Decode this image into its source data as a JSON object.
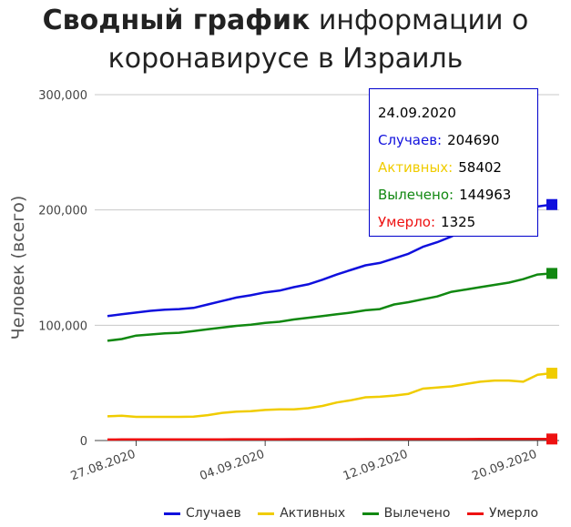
{
  "title": {
    "bold": "Сводный график",
    "rest_line1": " информации о",
    "line2": "коронавирусе в Израиль"
  },
  "tooltip": {
    "date": "24.09.2020",
    "cases_label": "Случаев:",
    "cases_value": "204690",
    "active_label": "Активных:",
    "active_value": "58402",
    "recovered_label": "Вылечено:",
    "recovered_value": "144963",
    "deaths_label": "Умерло:",
    "deaths_value": "1325"
  },
  "colors": {
    "cases": "#1010dd",
    "active": "#f0cc00",
    "recovered": "#118811",
    "deaths": "#ee1111"
  },
  "chart_data": {
    "type": "line",
    "ylabel": "Человек (всего)",
    "xlabel": "",
    "ylim": [
      0,
      300000
    ],
    "yticks": [
      0,
      100000,
      200000,
      300000
    ],
    "ytick_labels": [
      "0",
      "100,000",
      "200,000",
      "300,000"
    ],
    "x_start": "24.08.2020",
    "x": [
      "24.08",
      "25.08",
      "26.08",
      "27.08",
      "28.08",
      "29.08",
      "30.08",
      "31.08",
      "01.09",
      "02.09",
      "03.09",
      "04.09",
      "05.09",
      "06.09",
      "07.09",
      "08.09",
      "09.09",
      "10.09",
      "11.09",
      "12.09",
      "13.09",
      "14.09",
      "15.09",
      "16.09",
      "17.09",
      "18.09",
      "19.09",
      "20.09",
      "21.09",
      "22.09",
      "23.09",
      "24.09"
    ],
    "xtick_labels": [
      {
        "label": "27.08.2020",
        "index": 2
      },
      {
        "label": "04.09.2020",
        "index": 11
      },
      {
        "label": "12.09.2020",
        "index": 21
      },
      {
        "label": "20.09.2020",
        "index": 30
      }
    ],
    "series": [
      {
        "name": "Случаев",
        "color": "#1010dd",
        "values": [
          108000,
          109500,
          111000,
          112500,
          113500,
          114000,
          115000,
          118000,
          121000,
          124000,
          126000,
          128500,
          130000,
          133000,
          135500,
          139500,
          144000,
          148000,
          152000,
          154000,
          158000,
          162000,
          168000,
          172000,
          177000,
          183000,
          187000,
          190000,
          192000,
          196000,
          203000,
          204690
        ]
      },
      {
        "name": "Активных",
        "color": "#f0cc00",
        "values": [
          21000,
          21500,
          20500,
          20500,
          20500,
          20500,
          20800,
          22000,
          24000,
          25000,
          25500,
          26500,
          27000,
          27000,
          28000,
          30000,
          33000,
          35000,
          37500,
          38000,
          39000,
          40500,
          45000,
          46000,
          47000,
          49000,
          51000,
          52000,
          52000,
          51000,
          57000,
          58402
        ]
      },
      {
        "name": "Вылечено",
        "color": "#118811",
        "values": [
          86500,
          88000,
          91000,
          92000,
          93000,
          93500,
          95000,
          96500,
          98000,
          99500,
          100500,
          102000,
          103000,
          105000,
          106500,
          108000,
          109500,
          111000,
          113000,
          114000,
          118000,
          120000,
          122500,
          125000,
          129000,
          131000,
          133000,
          135000,
          137000,
          140000,
          144000,
          144963
        ]
      },
      {
        "name": "Умерло",
        "color": "#ee1111",
        "values": [
          900,
          920,
          940,
          960,
          980,
          1000,
          1020,
          1040,
          1060,
          1080,
          1100,
          1120,
          1140,
          1160,
          1180,
          1200,
          1210,
          1220,
          1230,
          1240,
          1250,
          1260,
          1270,
          1280,
          1290,
          1300,
          1305,
          1310,
          1315,
          1320,
          1323,
          1325
        ]
      }
    ],
    "legend_position": "bottom"
  }
}
